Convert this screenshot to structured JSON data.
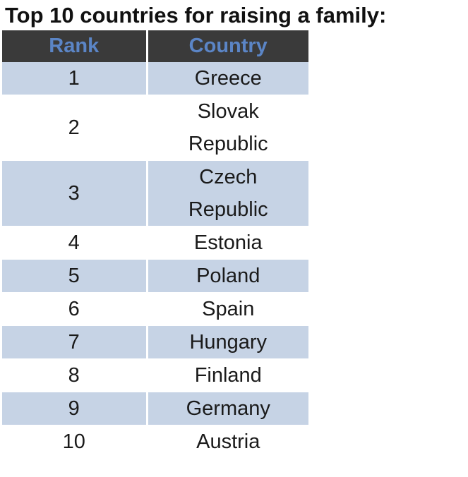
{
  "chart_data": {
    "type": "table",
    "title": "Top 10 countries for raising a family:",
    "columns": [
      "Rank",
      "Country"
    ],
    "rows": [
      {
        "rank": "1",
        "country": "Greece"
      },
      {
        "rank": "2",
        "country": "Slovak Republic"
      },
      {
        "rank": "3",
        "country": "Czech Republic"
      },
      {
        "rank": "4",
        "country": "Estonia"
      },
      {
        "rank": "5",
        "country": "Poland"
      },
      {
        "rank": "6",
        "country": "Spain"
      },
      {
        "rank": "7",
        "country": "Hungary"
      },
      {
        "rank": "8",
        "country": "Finland"
      },
      {
        "rank": "9",
        "country": "Germany"
      },
      {
        "rank": "10",
        "country": "Austria"
      }
    ],
    "colors": {
      "header_background": "#3a3a3a",
      "header_text": "#5b85c6",
      "stripe": "#c6d3e5",
      "text": "#1a1a1a"
    }
  }
}
